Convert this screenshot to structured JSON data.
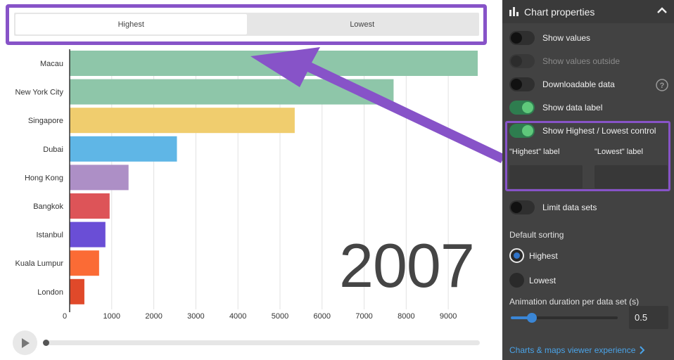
{
  "toggle": {
    "tabs": [
      {
        "label": "Highest",
        "active": true
      },
      {
        "label": "Lowest",
        "active": false
      }
    ]
  },
  "chart_data": {
    "type": "bar",
    "orientation": "horizontal",
    "categories": [
      "Macau",
      "New York City",
      "Singapore",
      "Dubai",
      "Hong Kong",
      "Bangkok",
      "Istanbul",
      "Kuala Lumpur",
      "London"
    ],
    "values": [
      9700,
      7700,
      5350,
      2550,
      1400,
      950,
      850,
      700,
      350
    ],
    "colors": [
      "#8ec6a9",
      "#8ec6a9",
      "#f0cd6e",
      "#5fb6e6",
      "#ad8fc6",
      "#dd5458",
      "#6a4ed6",
      "#fb6b35",
      "#e0492a"
    ],
    "xlim": [
      0,
      9800
    ],
    "xticks": [
      0,
      1000,
      2000,
      3000,
      4000,
      5000,
      6000,
      7000,
      8000,
      9000
    ],
    "grid": true,
    "overlay_label": "2007"
  },
  "timeline": {
    "progress": 0.0
  },
  "panel": {
    "title": "Chart properties",
    "toggles": [
      {
        "label": "Show values",
        "on": false,
        "disabled": false
      },
      {
        "label": "Show values outside",
        "on": false,
        "disabled": true
      },
      {
        "label": "Downloadable data",
        "on": false,
        "disabled": false
      },
      {
        "label": "Show data label",
        "on": true,
        "disabled": false
      },
      {
        "label": "Show Highest / Lowest control",
        "on": true,
        "disabled": false
      }
    ],
    "highest_label_caption": "\"Highest\" label",
    "lowest_label_caption": "\"Lowest\" label",
    "highest_label_value": "",
    "lowest_label_value": "",
    "limit_toggle": {
      "label": "Limit data sets",
      "on": false
    },
    "sorting": {
      "heading": "Default sorting",
      "options": [
        {
          "label": "Highest",
          "selected": true
        },
        {
          "label": "Lowest",
          "selected": false
        }
      ]
    },
    "animation": {
      "heading": "Animation duration per data set (s)",
      "value": "0.5",
      "slider_fraction": 0.2
    },
    "viewer_link": "Charts & maps viewer experience"
  },
  "colors": {
    "accent_purple": "#8753c8",
    "toggle_on": "#5fc87b",
    "link": "#4aa3e8",
    "panel_bg": "#424242"
  }
}
